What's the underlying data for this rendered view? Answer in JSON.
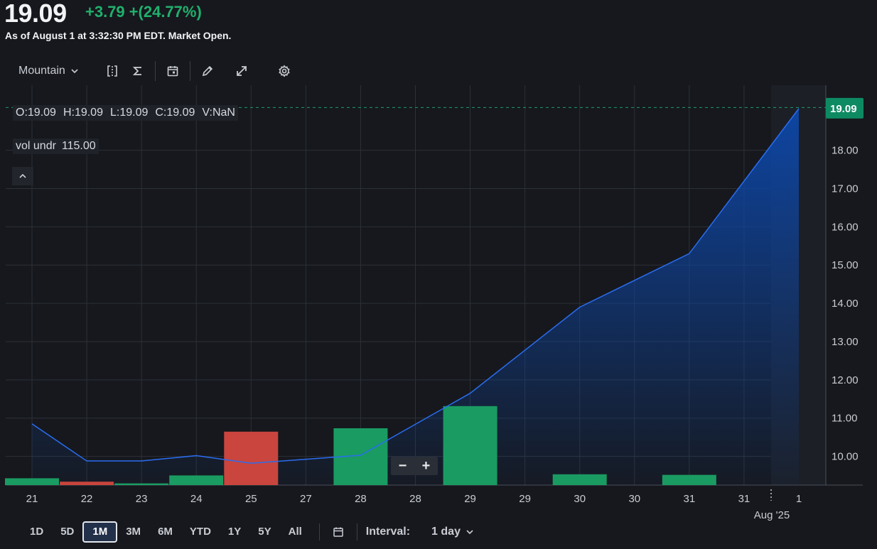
{
  "header": {
    "price": "19.09",
    "change": "+3.79",
    "change_pct": "+(24.77%)",
    "as_of": "As of August 1 at 3:32:30 PM EDT. Market Open."
  },
  "toolbar": {
    "chart_type": "Mountain",
    "icons": [
      "compare-icon",
      "indicators-icon",
      "events-calendar-icon",
      "draw-pencil-icon",
      "expand-icon",
      "settings-gear-icon"
    ]
  },
  "legend": {
    "open": "O:19.09",
    "high": "H:19.09",
    "low": "L:19.09",
    "close": "C:19.09",
    "volume": "V:NaN",
    "vol_label": "vol undr",
    "vol_value": "115.00"
  },
  "zoom": {
    "minus": "−",
    "plus": "+"
  },
  "range_buttons": [
    "1D",
    "5D",
    "1M",
    "3M",
    "6M",
    "YTD",
    "1Y",
    "5Y",
    "All"
  ],
  "active_range": "1M",
  "interval": {
    "label": "Interval:",
    "value": "1 day"
  },
  "colors": {
    "background": "#16181d",
    "line": "#2a6df0",
    "up": "#1a9b62",
    "down": "#c9453e",
    "price_tag": "#0e8a62"
  },
  "chart_data": {
    "type": "area",
    "x_ticks": [
      "21",
      "22",
      "23",
      "24",
      "25",
      "27",
      "28",
      "28",
      "29",
      "29",
      "30",
      "30",
      "31",
      "31",
      "1"
    ],
    "x_secondary_label": "Aug '25",
    "price_series": {
      "points": [
        {
          "x": 0,
          "y": 10.85
        },
        {
          "x": 1,
          "y": 9.88
        },
        {
          "x": 2,
          "y": 9.88
        },
        {
          "x": 3,
          "y": 10.02
        },
        {
          "x": 4,
          "y": 9.82
        },
        {
          "x": 6,
          "y": 10.03
        },
        {
          "x": 8,
          "y": 11.65
        },
        {
          "x": 10,
          "y": 13.9
        },
        {
          "x": 12,
          "y": 15.3
        },
        {
          "x": 14,
          "y": 19.09
        }
      ]
    },
    "volume_bars": [
      {
        "x": 0,
        "height": 0.12,
        "dir": "up"
      },
      {
        "x": 1,
        "height": 0.06,
        "dir": "down"
      },
      {
        "x": 2,
        "height": 0.03,
        "dir": "up"
      },
      {
        "x": 3,
        "height": 0.17,
        "dir": "up"
      },
      {
        "x": 4,
        "height": 0.94,
        "dir": "down"
      },
      {
        "x": 6,
        "height": 1.0,
        "dir": "up"
      },
      {
        "x": 8,
        "height": 1.39,
        "dir": "up"
      },
      {
        "x": 10,
        "height": 0.19,
        "dir": "up"
      },
      {
        "x": 12,
        "height": 0.18,
        "dir": "up"
      }
    ],
    "y_ticks": [
      "10.00",
      "11.00",
      "12.00",
      "13.00",
      "14.00",
      "15.00",
      "16.00",
      "17.00",
      "18.00"
    ],
    "ylim": [
      9.25,
      19.7
    ],
    "last_price_label": "19.09",
    "grid": true
  }
}
